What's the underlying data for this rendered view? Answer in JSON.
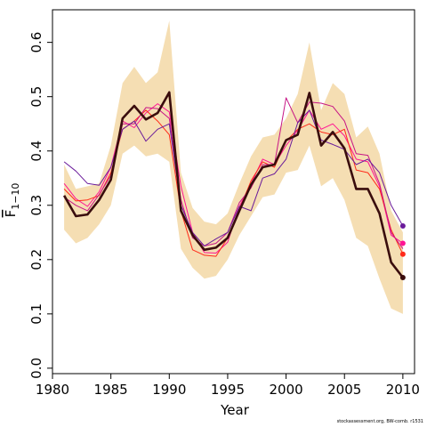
{
  "chart_data": {
    "type": "line",
    "xlabel": "Year",
    "ylabel": "F",
    "ylabel_sub": "1−10",
    "xlim": [
      1980,
      2011
    ],
    "ylim": [
      -0.01,
      0.66
    ],
    "xticks": [
      1980,
      1985,
      1990,
      1995,
      2000,
      2005,
      2010
    ],
    "yticks": [
      0.0,
      0.1,
      0.2,
      0.3,
      0.4,
      0.5,
      0.6
    ],
    "ytick_labels": [
      "0.0",
      "0.1",
      "0.2",
      "0.3",
      "0.4",
      "0.5",
      "0.6"
    ],
    "x": [
      1981,
      1982,
      1983,
      1984,
      1985,
      1986,
      1987,
      1988,
      1989,
      1990,
      1991,
      1992,
      1993,
      1994,
      1995,
      1996,
      1997,
      1998,
      1999,
      2000,
      2001,
      2002,
      2003,
      2004,
      2005,
      2006,
      2007,
      2008,
      2009,
      2010
    ],
    "band": {
      "color": "#f5deb3",
      "upper": [
        0.375,
        0.33,
        0.335,
        0.34,
        0.41,
        0.525,
        0.555,
        0.525,
        0.545,
        0.64,
        0.36,
        0.295,
        0.27,
        0.265,
        0.285,
        0.34,
        0.39,
        0.425,
        0.43,
        0.46,
        0.505,
        0.6,
        0.475,
        0.525,
        0.505,
        0.425,
        0.445,
        0.395,
        0.29,
        0.25
      ],
      "lower": [
        0.255,
        0.23,
        0.24,
        0.265,
        0.3,
        0.395,
        0.41,
        0.39,
        0.395,
        0.38,
        0.22,
        0.185,
        0.165,
        0.17,
        0.2,
        0.245,
        0.28,
        0.315,
        0.32,
        0.36,
        0.365,
        0.41,
        0.335,
        0.35,
        0.31,
        0.24,
        0.225,
        0.165,
        0.11,
        0.1
      ]
    },
    "series": [
      {
        "color": "#3a0d0d",
        "width": 2.6,
        "endpoint": true,
        "values": [
          0.318,
          0.28,
          0.283,
          0.31,
          0.347,
          0.46,
          0.483,
          0.458,
          0.47,
          0.508,
          0.29,
          0.245,
          0.218,
          0.222,
          0.24,
          0.29,
          0.338,
          0.37,
          0.375,
          0.42,
          0.43,
          0.507,
          0.41,
          0.435,
          0.405,
          0.33,
          0.33,
          0.285,
          0.195,
          0.167
        ]
      },
      {
        "color": "#ff1493",
        "width": 1.0,
        "endpoint": true,
        "values": [
          0.34,
          0.312,
          0.298,
          0.325,
          0.37,
          0.455,
          0.443,
          0.47,
          0.487,
          0.472,
          0.335,
          0.25,
          0.213,
          0.212,
          0.232,
          0.298,
          0.34,
          0.385,
          0.375,
          0.41,
          0.438,
          0.475,
          0.44,
          0.45,
          0.428,
          0.385,
          0.38,
          0.335,
          0.245,
          0.23
        ]
      },
      {
        "color": "#ff2a1a",
        "width": 1.0,
        "endpoint": true,
        "values": [
          0.33,
          0.308,
          0.31,
          0.318,
          0.36,
          0.44,
          0.455,
          0.475,
          0.455,
          0.43,
          0.29,
          0.218,
          0.208,
          0.206,
          0.24,
          0.292,
          0.345,
          0.38,
          0.37,
          0.418,
          0.44,
          0.45,
          0.435,
          0.43,
          0.44,
          0.365,
          0.36,
          0.33,
          0.255,
          0.21
        ]
      },
      {
        "color": "#c71585",
        "width": 1.0,
        "endpoint": false,
        "values": [
          0.315,
          0.3,
          0.29,
          0.32,
          0.355,
          0.45,
          0.45,
          0.48,
          0.478,
          0.46,
          0.31,
          0.24,
          0.225,
          0.23,
          0.25,
          0.305,
          0.332,
          0.375,
          0.375,
          0.498,
          0.452,
          0.49,
          0.488,
          0.482,
          0.455,
          0.395,
          0.392,
          0.34,
          0.25,
          0.22
        ]
      },
      {
        "color": "#6a1b9a",
        "width": 1.0,
        "endpoint": true,
        "values": [
          0.38,
          0.363,
          0.34,
          0.337,
          0.37,
          0.44,
          0.455,
          0.418,
          0.44,
          0.45,
          0.3,
          0.25,
          0.225,
          0.238,
          0.25,
          0.298,
          0.29,
          0.35,
          0.358,
          0.385,
          0.452,
          0.475,
          0.42,
          0.412,
          0.403,
          0.375,
          0.385,
          0.36,
          0.3,
          0.262
        ]
      }
    ]
  },
  "footnote": "stockassessment.org, BW-comb. r1531"
}
